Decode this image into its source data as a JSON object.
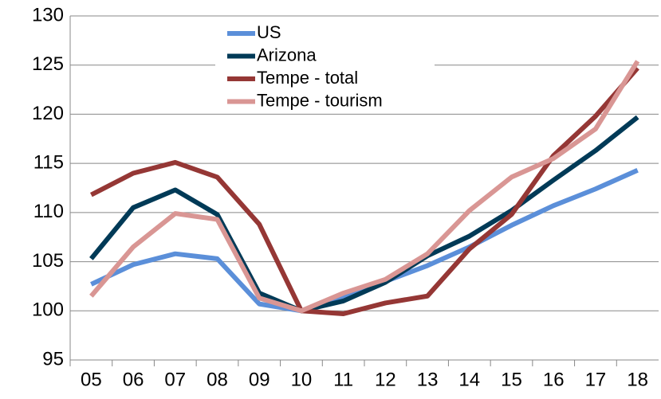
{
  "chart_data": {
    "type": "line",
    "categories": [
      "05",
      "06",
      "07",
      "08",
      "09",
      "10",
      "11",
      "12",
      "13",
      "14",
      "15",
      "16",
      "17",
      "18"
    ],
    "series": [
      {
        "name": "US",
        "color": "#5b8fd9",
        "values": [
          102.7,
          104.7,
          105.8,
          105.3,
          100.7,
          100,
          101.5,
          103,
          104.6,
          106.5,
          108.7,
          110.7,
          112.4,
          114.3
        ]
      },
      {
        "name": "Arizona",
        "color": "#003a57",
        "values": [
          105.3,
          110.5,
          112.3,
          109.8,
          101.8,
          100,
          101,
          102.9,
          105.6,
          107.6,
          110.2,
          113.3,
          116.3,
          119.7
        ]
      },
      {
        "name": "Tempe - total",
        "color": "#953735",
        "values": [
          111.8,
          114,
          115.1,
          113.6,
          108.8,
          100,
          99.7,
          100.8,
          101.5,
          106.3,
          109.8,
          115.8,
          119.8,
          124.7
        ]
      },
      {
        "name": "Tempe - tourism",
        "color": "#d99694",
        "values": [
          101.5,
          106.5,
          109.9,
          109.3,
          101.3,
          100,
          101.8,
          103.2,
          105.8,
          110.2,
          113.6,
          115.5,
          118.5,
          125.4
        ]
      }
    ],
    "ylim": [
      95,
      130
    ],
    "yticks": [
      95,
      100,
      105,
      110,
      115,
      120,
      125,
      130
    ],
    "grid": true,
    "legend": "top"
  }
}
